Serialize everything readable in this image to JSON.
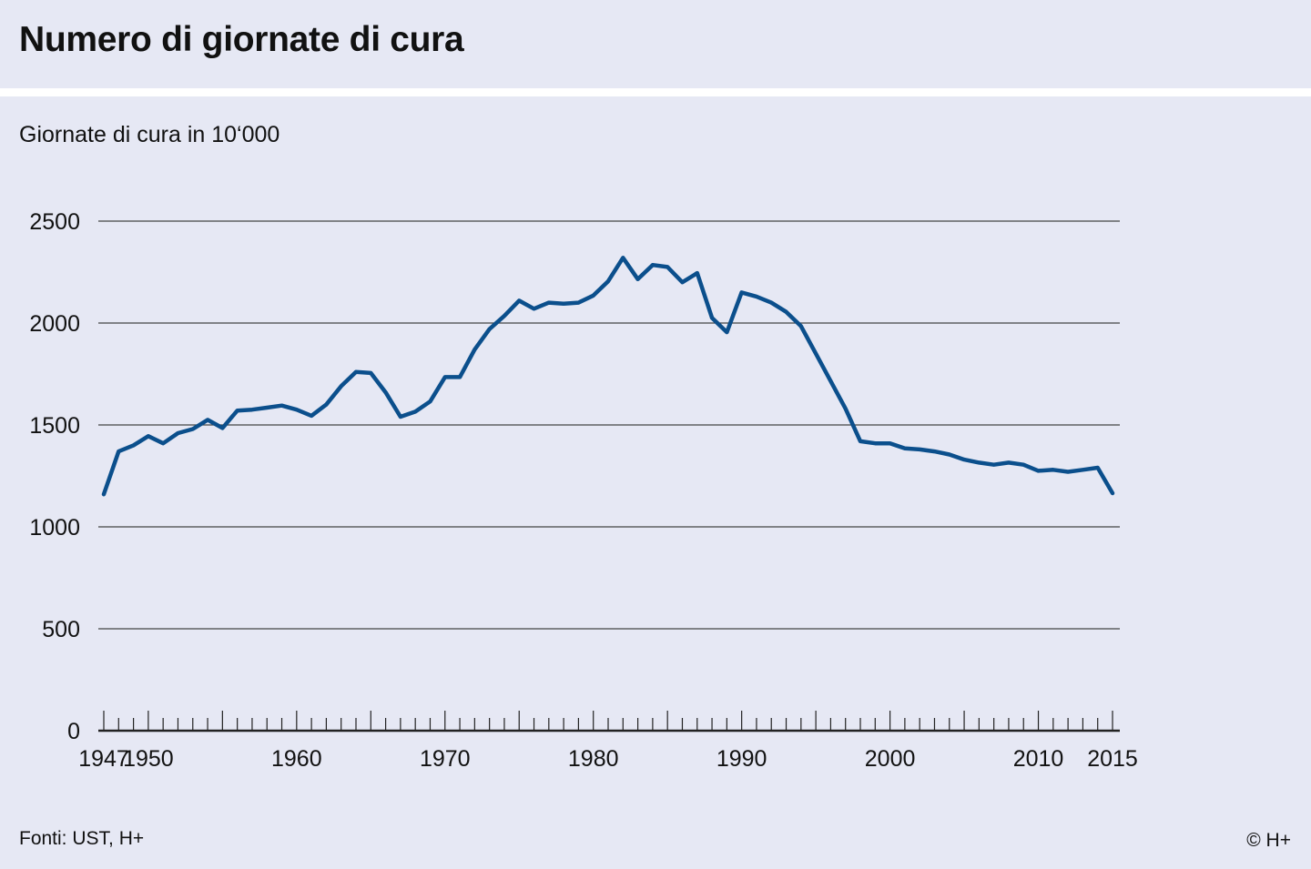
{
  "header": {
    "title": "Numero di giornate di cura"
  },
  "footer": {
    "source": "Fonti: UST, H+",
    "copyright": "© H+"
  },
  "colors": {
    "background": "#e6e8f4",
    "line": "#0b4f8c",
    "grid": "#444444"
  },
  "chart_data": {
    "type": "line",
    "title": "Numero di giornate di cura",
    "ylabel": "Giornate di cura in 10‘000",
    "xlabel": "",
    "ylim": [
      0,
      2500
    ],
    "xlim": [
      1947,
      2015
    ],
    "yticks": [
      0,
      500,
      1000,
      1500,
      2000,
      2500
    ],
    "xtick_labels": [
      1947,
      1950,
      1960,
      1970,
      1980,
      1990,
      2000,
      2010,
      2015
    ],
    "grid": true,
    "series": [
      {
        "x": [
          1947,
          1948,
          1949,
          1950,
          1951,
          1952,
          1953,
          1954,
          1955,
          1956,
          1957,
          1958,
          1959,
          1960,
          1961,
          1962,
          1963,
          1964,
          1965,
          1966,
          1967,
          1968,
          1969,
          1970,
          1971,
          1972,
          1973,
          1974,
          1975,
          1976,
          1977,
          1978,
          1979,
          1980,
          1981,
          1982,
          1983,
          1984,
          1985,
          1986,
          1987,
          1988,
          1989,
          1990,
          1991,
          1992,
          1993,
          1994,
          1995,
          1996,
          1997,
          1998,
          1999,
          2000,
          2001,
          2002,
          2003,
          2004,
          2005,
          2006,
          2007,
          2008,
          2009,
          2010,
          2011,
          2012,
          2013,
          2014,
          2015
        ],
        "values": [
          1160,
          1370,
          1400,
          1445,
          1410,
          1460,
          1480,
          1525,
          1485,
          1570,
          1575,
          1585,
          1595,
          1575,
          1545,
          1600,
          1690,
          1760,
          1755,
          1660,
          1540,
          1565,
          1615,
          1735,
          1735,
          1870,
          1970,
          2035,
          2110,
          2070,
          2100,
          2095,
          2100,
          2135,
          2205,
          2320,
          2215,
          2285,
          2275,
          2200,
          2245,
          2025,
          1955,
          2150,
          2130,
          2100,
          2055,
          1985,
          1850,
          1715,
          1580,
          1420,
          1410,
          1410,
          1385,
          1380,
          1370,
          1355,
          1330,
          1315,
          1305,
          1315,
          1305,
          1275,
          1280,
          1270,
          1280,
          1290,
          1165
        ]
      }
    ]
  }
}
